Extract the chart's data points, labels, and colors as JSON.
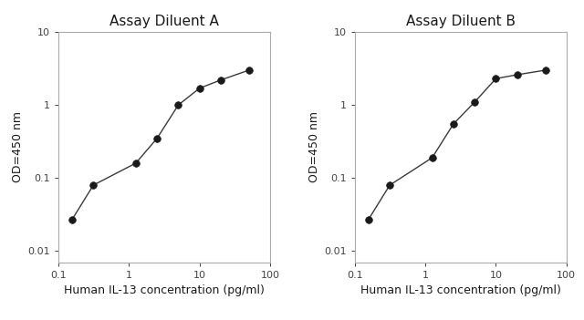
{
  "panel_A": {
    "title": "Assay Diluent A",
    "x": [
      0.156,
      0.313,
      1.25,
      2.5,
      5,
      10,
      20,
      50
    ],
    "y": [
      0.027,
      0.08,
      0.16,
      0.35,
      1.0,
      1.7,
      2.2,
      3.0
    ]
  },
  "panel_B": {
    "title": "Assay Diluent B",
    "x": [
      0.156,
      0.313,
      1.25,
      2.5,
      5,
      10,
      20,
      50
    ],
    "y": [
      0.027,
      0.08,
      0.19,
      0.55,
      1.1,
      2.3,
      2.6,
      3.0
    ]
  },
  "xlabel": "Human IL-13 concentration (pg/ml)",
  "ylabel": "OD=450 nm",
  "xlim": [
    0.1,
    100
  ],
  "ylim": [
    0.007,
    10
  ],
  "line_color": "#3a3a3a",
  "marker_color": "#1a1a1a",
  "bg_color": "#ffffff",
  "spine_color": "#aaaaaa",
  "title_fontsize": 11,
  "label_fontsize": 9,
  "tick_fontsize": 8,
  "marker_size": 5.5,
  "linewidth": 1.0
}
